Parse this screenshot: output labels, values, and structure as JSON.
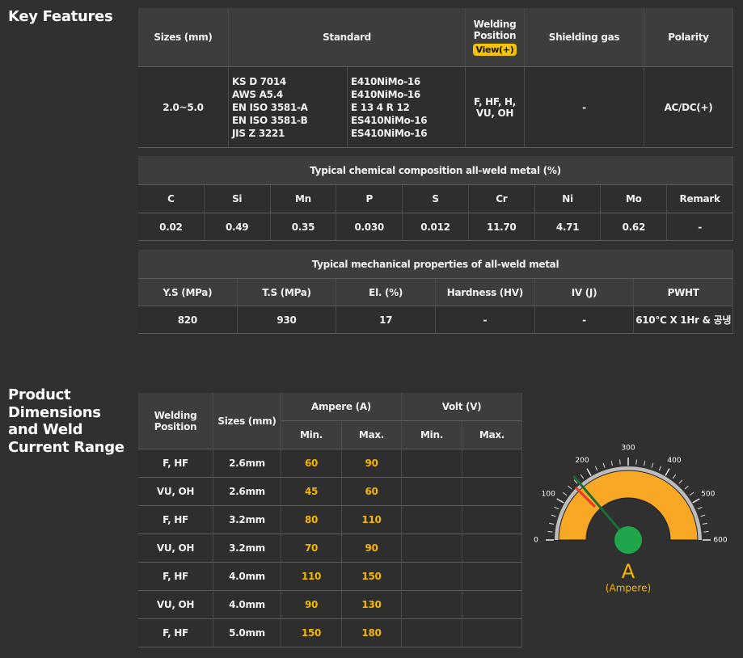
{
  "key_features": {
    "title": "Key Features",
    "spec_table": {
      "headers": [
        "Sizes (mm)",
        "Standard",
        "Welding Position",
        "Shielding gas",
        "Polarity"
      ],
      "view_button": "View(+)",
      "row": {
        "size": "2.0~5.0",
        "standards_left": [
          "KS D 7014",
          "AWS A5.4",
          "EN ISO 3581-A",
          "EN ISO 3581-B",
          "JIS Z 3221"
        ],
        "standards_right": [
          "E410NiMo-16",
          "E410NiMo-16",
          "E 13 4 R 12",
          "ES410NiMo-16",
          "ES410NiMo-16"
        ],
        "position": "F, HF, H, VU, OH",
        "shielding_gas": "-",
        "polarity": "AC/DC(+)"
      }
    },
    "chemical_table": {
      "caption": "Typical chemical composition all-weld metal (%)",
      "headers": [
        "C",
        "Si",
        "Mn",
        "P",
        "S",
        "Cr",
        "Ni",
        "Mo",
        "Remark"
      ],
      "values": [
        "0.02",
        "0.49",
        "0.35",
        "0.030",
        "0.012",
        "11.70",
        "4.71",
        "0.62",
        "-"
      ]
    },
    "mechanical_table": {
      "caption": "Typical mechanical properties of all-weld metal",
      "headers": [
        "Y.S (MPa)",
        "T.S (MPa)",
        "El. (%)",
        "Hardness (HV)",
        "IV (J)",
        "PWHT"
      ],
      "values": [
        "820",
        "930",
        "17",
        "-",
        "-",
        "610℃ X 1Hr & 공냉"
      ]
    }
  },
  "product_dimensions": {
    "title": "Product Dimensions and Weld Current Range",
    "table": {
      "headers": [
        "Welding Position",
        "Sizes (mm)",
        "Ampere (A)",
        "Volt (V)"
      ],
      "subheaders": [
        "Min.",
        "Max.",
        "Min.",
        "Max."
      ],
      "rows": [
        [
          "F, HF",
          "2.6mm",
          "60",
          "90"
        ],
        [
          "VU, OH",
          "2.6mm",
          "45",
          "60"
        ],
        [
          "F, HF",
          "3.2mm",
          "80",
          "110"
        ],
        [
          "VU, OH",
          "3.2mm",
          "70",
          "90"
        ],
        [
          "F, HF",
          "4.0mm",
          "110",
          "150"
        ],
        [
          "VU, OH",
          "4.0mm",
          "90",
          "130"
        ],
        [
          "F, HF",
          "5.0mm",
          "150",
          "180"
        ]
      ]
    },
    "gauge": {
      "lim": [
        0,
        600
      ],
      "ticks": [
        0,
        100,
        200,
        300,
        400,
        500,
        600
      ],
      "needle": 165,
      "marker": 150,
      "unit_symbol": "A",
      "unit_label": "(Ampere)"
    }
  }
}
